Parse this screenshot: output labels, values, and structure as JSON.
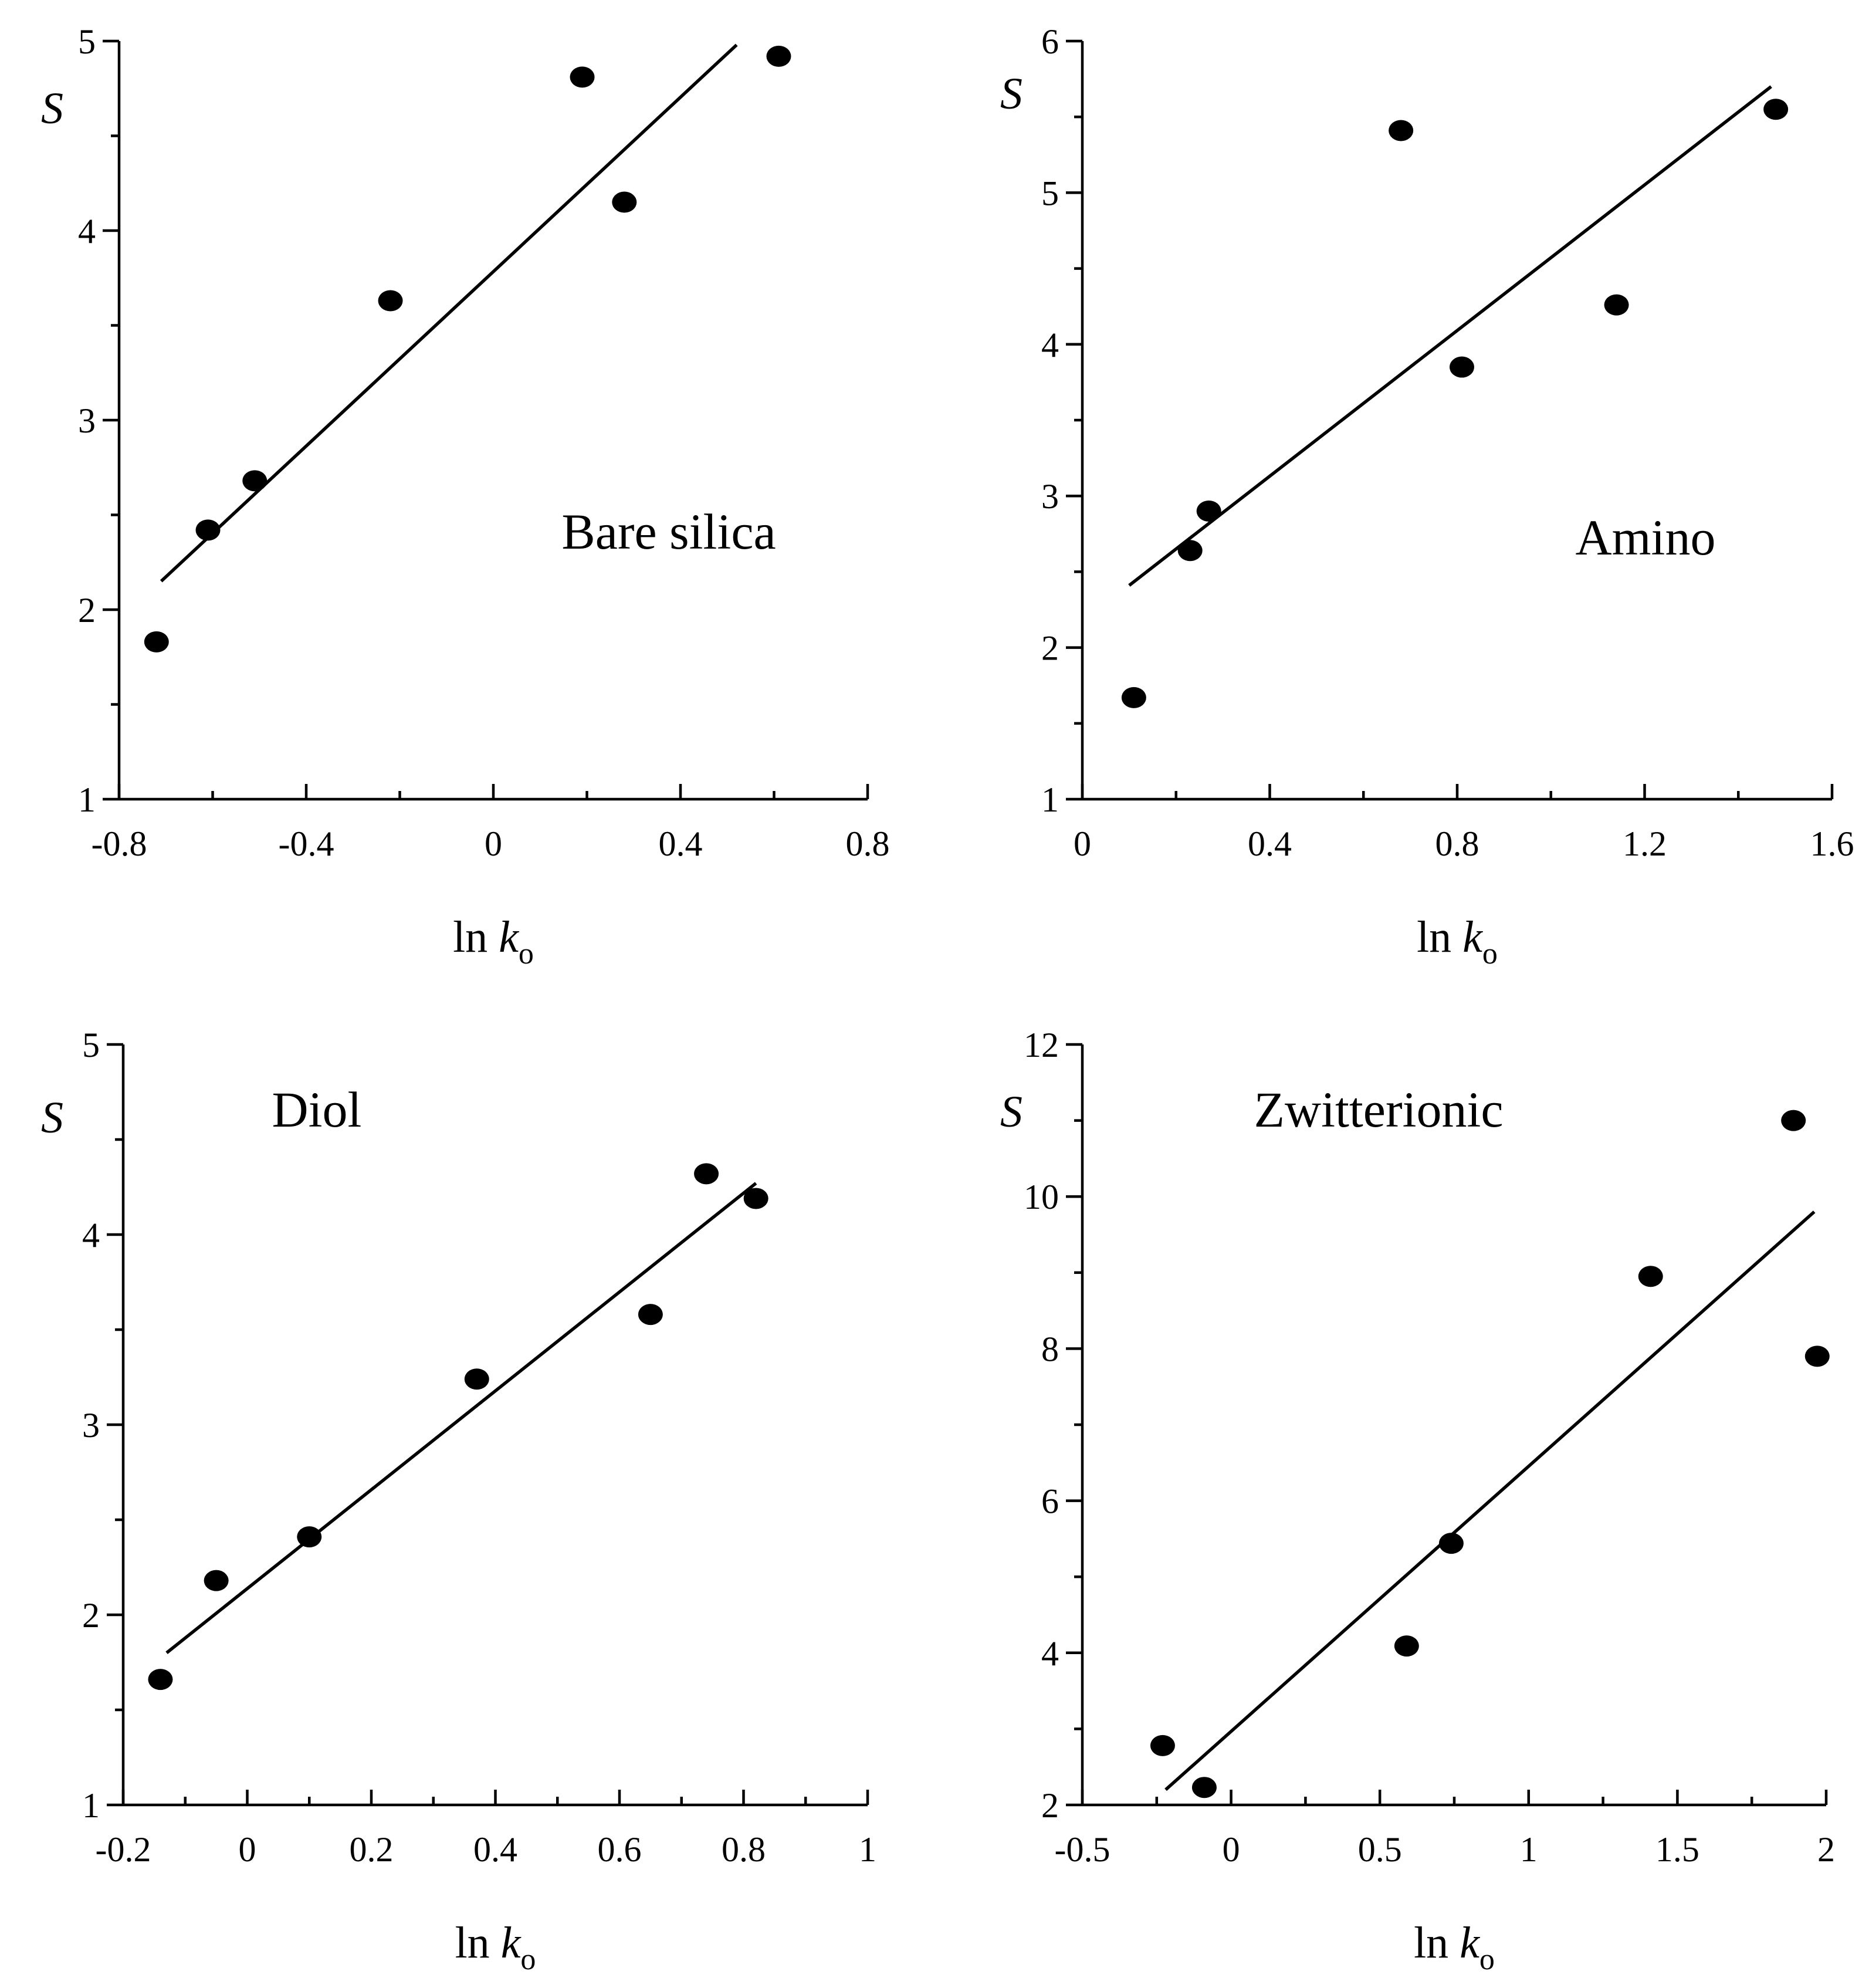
{
  "figure": {
    "ink_color": "#000000",
    "background_color": "#ffffff"
  },
  "chart_data": [
    {
      "type": "scatter",
      "id": "bare-silica",
      "annotation": "Bare silica",
      "ylabel": "S",
      "xlabel": {
        "base": "ln ",
        "var": "k",
        "sub": "o"
      },
      "xlim": [
        -0.8,
        0.8
      ],
      "ylim": [
        1,
        5
      ],
      "xticks": [
        -0.8,
        -0.4,
        0,
        0.4,
        0.8
      ],
      "xtick_labels": [
        "-0.8",
        "-0.4",
        "0",
        "0.4",
        "0.8"
      ],
      "x_minor_step": 0.2,
      "yticks": [
        1,
        2,
        3,
        4,
        5
      ],
      "ytick_labels": [
        "1",
        "2",
        "3",
        "4",
        "5"
      ],
      "y_minor_step": 0.5,
      "points": [
        {
          "x": -0.72,
          "y": 1.83
        },
        {
          "x": -0.61,
          "y": 2.42
        },
        {
          "x": -0.51,
          "y": 2.68
        },
        {
          "x": -0.22,
          "y": 3.63
        },
        {
          "x": 0.19,
          "y": 4.81
        },
        {
          "x": 0.28,
          "y": 4.15
        },
        {
          "x": 0.61,
          "y": 4.92
        }
      ],
      "fit_line": {
        "x1": -0.71,
        "y1": 2.15,
        "x2": 0.52,
        "y2": 4.98
      }
    },
    {
      "type": "scatter",
      "id": "amino",
      "annotation": "Amino",
      "ylabel": "S",
      "xlabel": {
        "base": "ln ",
        "var": "k",
        "sub": "o"
      },
      "xlim": [
        0,
        1.6
      ],
      "ylim": [
        1,
        6
      ],
      "xticks": [
        0,
        0.4,
        0.8,
        1.2,
        1.6
      ],
      "xtick_labels": [
        "0",
        "0.4",
        "0.8",
        "1.2",
        "1.6"
      ],
      "x_minor_step": 0.2,
      "yticks": [
        1,
        2,
        3,
        4,
        5,
        6
      ],
      "ytick_labels": [
        "1",
        "2",
        "3",
        "4",
        "5",
        "6"
      ],
      "y_minor_step": 0.5,
      "points": [
        {
          "x": 0.11,
          "y": 1.67
        },
        {
          "x": 0.23,
          "y": 2.64
        },
        {
          "x": 0.27,
          "y": 2.9
        },
        {
          "x": 0.68,
          "y": 5.41
        },
        {
          "x": 0.81,
          "y": 3.85
        },
        {
          "x": 1.14,
          "y": 4.26
        },
        {
          "x": 1.48,
          "y": 5.55
        }
      ],
      "fit_line": {
        "x1": 0.1,
        "y1": 2.41,
        "x2": 1.47,
        "y2": 5.7
      }
    },
    {
      "type": "scatter",
      "id": "diol",
      "annotation": "Diol",
      "ylabel": "S",
      "xlabel": {
        "base": "ln ",
        "var": "k",
        "sub": "o"
      },
      "xlim": [
        -0.2,
        1
      ],
      "ylim": [
        1,
        5
      ],
      "xticks": [
        -0.2,
        0,
        0.2,
        0.4,
        0.6,
        0.8,
        1
      ],
      "xtick_labels": [
        "-0.2",
        "0",
        "0.2",
        "0.4",
        "0.6",
        "0.8",
        "1"
      ],
      "x_minor_step": 0.1,
      "yticks": [
        1,
        2,
        3,
        4,
        5
      ],
      "ytick_labels": [
        "1",
        "2",
        "3",
        "4",
        "5"
      ],
      "y_minor_step": 0.5,
      "points": [
        {
          "x": -0.14,
          "y": 1.66
        },
        {
          "x": -0.05,
          "y": 2.18
        },
        {
          "x": 0.1,
          "y": 2.41
        },
        {
          "x": 0.37,
          "y": 3.24
        },
        {
          "x": 0.65,
          "y": 3.58
        },
        {
          "x": 0.74,
          "y": 4.32
        },
        {
          "x": 0.82,
          "y": 4.19
        }
      ],
      "fit_line": {
        "x1": -0.13,
        "y1": 1.8,
        "x2": 0.82,
        "y2": 4.27
      }
    },
    {
      "type": "scatter",
      "id": "zwitterionic",
      "annotation": "Zwitterionic",
      "ylabel": "S",
      "xlabel": {
        "base": "ln ",
        "var": "k",
        "sub": "o"
      },
      "xlim": [
        -0.5,
        2
      ],
      "ylim": [
        2,
        12
      ],
      "xticks": [
        -0.5,
        0,
        0.5,
        1,
        1.5,
        2
      ],
      "xtick_labels": [
        "-0.5",
        "0",
        "0.5",
        "1",
        "1.5",
        "2"
      ],
      "x_minor_step": 0.25,
      "yticks": [
        2,
        4,
        6,
        8,
        10,
        12
      ],
      "ytick_labels": [
        "2",
        "4",
        "6",
        "8",
        "10",
        "12"
      ],
      "y_minor_step": 1,
      "points": [
        {
          "x": -0.23,
          "y": 2.78
        },
        {
          "x": -0.09,
          "y": 2.23
        },
        {
          "x": 0.59,
          "y": 4.09
        },
        {
          "x": 0.74,
          "y": 5.44
        },
        {
          "x": 1.41,
          "y": 8.95
        },
        {
          "x": 1.89,
          "y": 11.0
        },
        {
          "x": 1.97,
          "y": 7.9
        }
      ],
      "fit_line": {
        "x1": -0.22,
        "y1": 2.2,
        "x2": 1.96,
        "y2": 9.8
      }
    }
  ]
}
